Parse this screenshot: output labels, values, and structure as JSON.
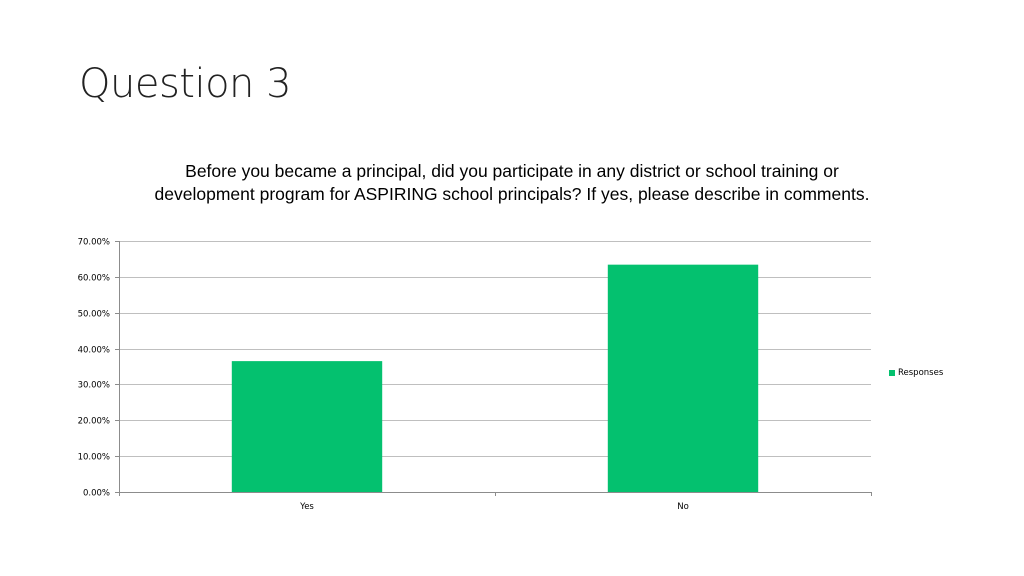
{
  "slide": {
    "title": "Question 3"
  },
  "chart_data": {
    "type": "bar",
    "title": "Before you became a principal, did you participate in any district or school training or development program for ASPIRING school principals?  If yes, please describe in comments.",
    "categories": [
      "Yes",
      "No"
    ],
    "series": [
      {
        "name": "Responses",
        "values": [
          36.5,
          63.4
        ],
        "color": "#04c16f"
      }
    ],
    "y_ticks": [
      "0.00%",
      "10.00%",
      "20.00%",
      "30.00%",
      "40.00%",
      "50.00%",
      "60.00%",
      "70.00%"
    ],
    "ylim": [
      0,
      70
    ],
    "grid": true,
    "legend_position": "right"
  }
}
